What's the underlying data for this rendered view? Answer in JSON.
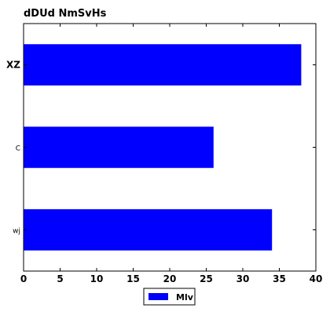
{
  "chart_data": {
    "type": "bar",
    "orientation": "horizontal",
    "title": "dDUd  NmSvHs",
    "xlabel": "",
    "ylabel": "",
    "categories": [
      "XZ",
      "C",
      "wj"
    ],
    "series": [
      {
        "name": "Mlv",
        "values": [
          38,
          26,
          34
        ],
        "color": "#0000ff"
      }
    ],
    "xlim": [
      0,
      40
    ],
    "xticks": [
      "0",
      "5",
      "10",
      "15",
      "20",
      "25",
      "30",
      "35",
      "40"
    ],
    "grid": false,
    "legend": {
      "placement": "bottom-center",
      "entries": [
        "Mlv"
      ]
    }
  }
}
